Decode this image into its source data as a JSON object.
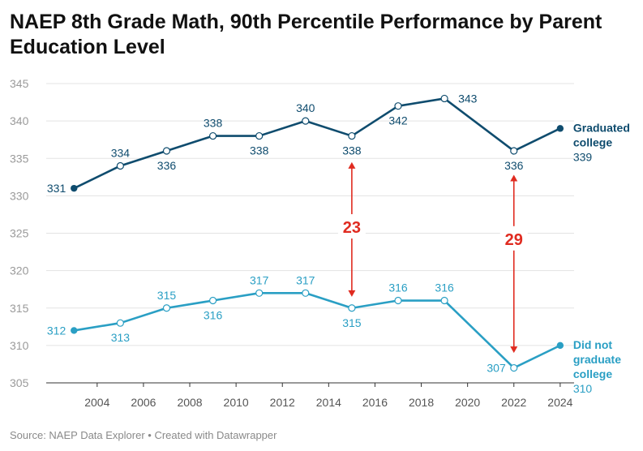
{
  "title": "NAEP 8th Grade Math, 90th Percentile Performance by Parent Education Level",
  "source": "Source: NAEP Data Explorer • Created with Datawrapper",
  "colors": {
    "graduated": "#0f4c6e",
    "not_graduated": "#2a9fc4",
    "gap": "#e02b20",
    "grid": "#e3e3e3",
    "axis": "#333333"
  },
  "chart_data": {
    "type": "line",
    "title": "NAEP 8th Grade Math, 90th Percentile Performance by Parent Education Level",
    "xlabel": "",
    "ylabel": "",
    "x": [
      2003,
      2005,
      2007,
      2009,
      2011,
      2013,
      2015,
      2017,
      2019,
      2022,
      2024
    ],
    "x_ticks": [
      "2004",
      "2006",
      "2008",
      "2010",
      "2012",
      "2014",
      "2016",
      "2018",
      "2020",
      "2022",
      "2024"
    ],
    "y_ticks": [
      "305",
      "310",
      "315",
      "320",
      "325",
      "330",
      "335",
      "340",
      "345"
    ],
    "xlim": [
      2001.8,
      2024.6
    ],
    "ylim": [
      305,
      345
    ],
    "grid": true,
    "series": [
      {
        "name": "Graduated college",
        "name_lines": [
          "Graduated",
          "college"
        ],
        "values": [
          331,
          334,
          336,
          338,
          338,
          340,
          338,
          342,
          343,
          336,
          339
        ],
        "value_labels": [
          "331",
          "334",
          "336",
          "338",
          "338",
          "340",
          "338",
          "342",
          "343",
          "336",
          "339"
        ]
      },
      {
        "name": "Did not graduate college",
        "name_lines": [
          "Did not",
          "graduate",
          "college"
        ],
        "values": [
          312,
          313,
          315,
          316,
          317,
          317,
          315,
          316,
          316,
          307,
          310
        ],
        "value_labels": [
          "312",
          "313",
          "315",
          "316",
          "317",
          "317",
          "315",
          "316",
          "316",
          "307",
          "310"
        ]
      }
    ],
    "annotations": [
      {
        "year": 2015,
        "from": 334.5,
        "to": 316.5,
        "label": "23",
        "label_value": 325.7
      },
      {
        "year": 2022,
        "from": 332.8,
        "to": 309,
        "label": "29",
        "label_value": 324.1
      }
    ]
  }
}
